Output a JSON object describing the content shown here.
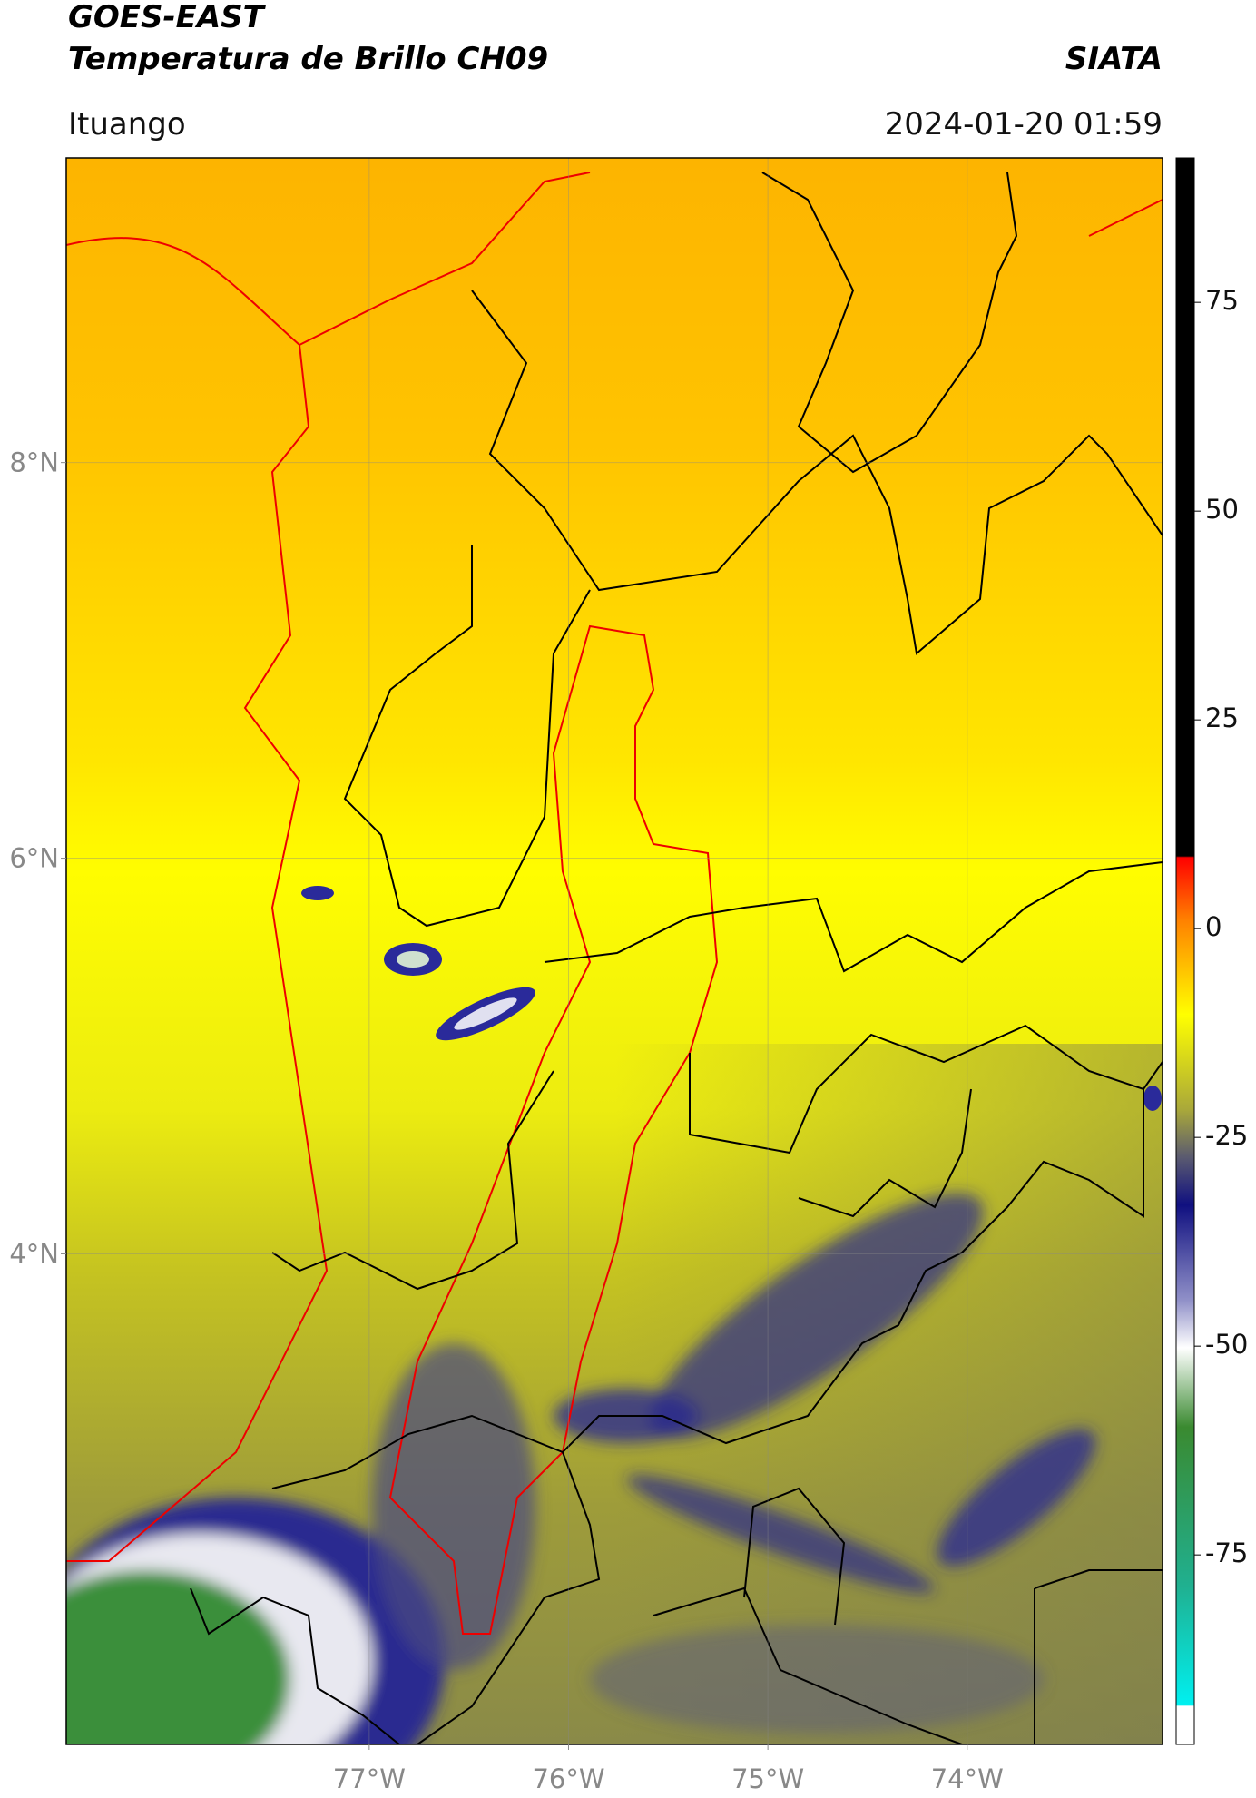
{
  "header": {
    "title": "GOES-EAST",
    "subtitle": "Temperatura de Brillo CH09",
    "brand": "SIATA",
    "location": "Ituango",
    "datetime": "2024-01-20 01:59"
  },
  "map": {
    "xlim": [
      -78.52,
      -73.02
    ],
    "ylim": [
      1.52,
      9.54
    ],
    "xticks": [
      {
        "value": -77,
        "label": "77°W"
      },
      {
        "value": -76,
        "label": "76°W"
      },
      {
        "value": -75,
        "label": "75°W"
      },
      {
        "value": -74,
        "label": "74°W"
      }
    ],
    "yticks": [
      {
        "value": 4,
        "label": "4°N"
      },
      {
        "value": 6,
        "label": "6°N"
      },
      {
        "value": 8,
        "label": "8°N"
      }
    ]
  },
  "colorbar": {
    "vlim": [
      -97.7,
      92.3
    ],
    "ticks": [
      75,
      50,
      25,
      0,
      -25,
      -50,
      -75
    ]
  }
}
